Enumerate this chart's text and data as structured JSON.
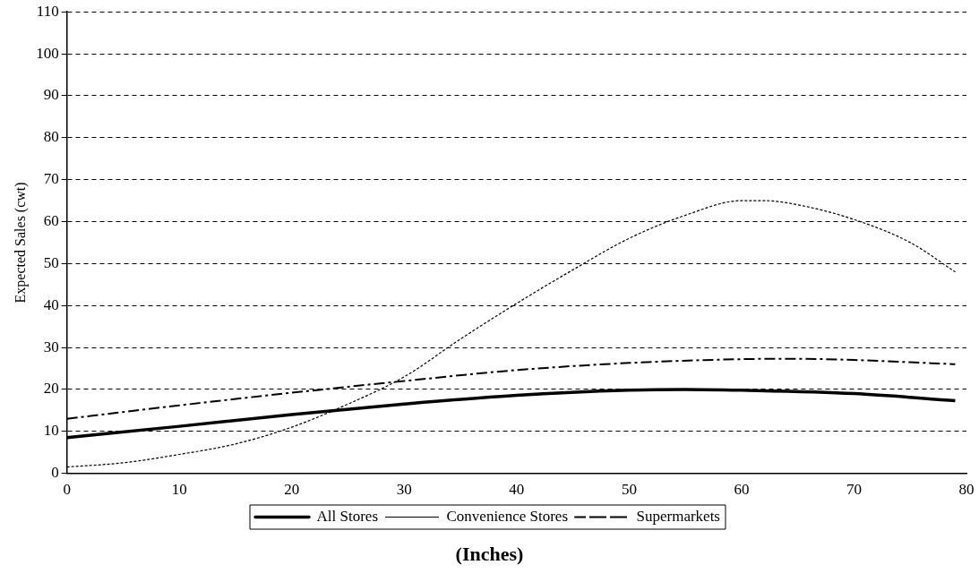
{
  "chart_data": {
    "type": "line",
    "xlabel": "(Inches)",
    "ylabel": "Expected Sales (cwt)",
    "xlim": [
      0,
      80
    ],
    "xticks": [
      0,
      10,
      20,
      30,
      40,
      50,
      60,
      70,
      80
    ],
    "ylim": [
      0,
      110
    ],
    "yticks": [
      0,
      10,
      20,
      30,
      40,
      50,
      60,
      70,
      80,
      90,
      100,
      110
    ],
    "grid": "y",
    "legend": "bottom",
    "marker": "none",
    "series": [
      {
        "name": "All Stores",
        "color": "#000000",
        "line_style": "solid",
        "x": [
          0,
          10,
          20,
          30,
          40,
          50,
          55,
          60,
          70,
          79
        ],
        "values": [
          8.5,
          11.2,
          14,
          16.5,
          18.6,
          19.8,
          20,
          19.8,
          19,
          17.3
        ]
      },
      {
        "name": "Convenience Stores",
        "color": "#000000",
        "line_style": "dotted",
        "x": [
          0,
          5,
          10,
          15,
          20,
          25,
          30,
          35,
          40,
          45,
          50,
          55,
          60,
          62,
          65,
          70,
          75,
          79
        ],
        "values": [
          1.5,
          2.5,
          4.5,
          7,
          11,
          16.5,
          23,
          32,
          40.5,
          48.5,
          56,
          61.5,
          65,
          65,
          64,
          60.5,
          55,
          48
        ]
      },
      {
        "name": "Supermarkets",
        "color": "#000000",
        "line_style": "dashed",
        "x": [
          0,
          10,
          20,
          30,
          40,
          50,
          60,
          65,
          70,
          79
        ],
        "values": [
          13,
          16.2,
          19.2,
          22,
          24.6,
          26.3,
          27.2,
          27.3,
          27,
          26
        ]
      }
    ]
  }
}
